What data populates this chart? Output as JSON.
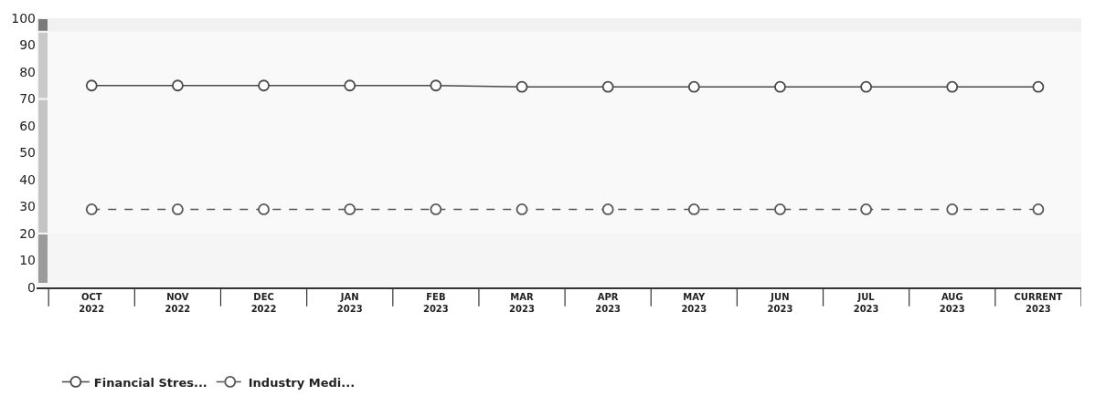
{
  "chart_data": {
    "type": "line",
    "categories": [
      "OCT\n2022",
      "NOV\n2022",
      "DEC\n2022",
      "JAN\n2023",
      "FEB\n2023",
      "MAR\n2023",
      "APR\n2023",
      "MAY\n2023",
      "JUN\n2023",
      "JUL\n2023",
      "AUG\n2023",
      "CURRENT\n2023"
    ],
    "series": [
      {
        "name": "Financial Stres...",
        "color": "#4a4a4a",
        "line_style": "solid",
        "values": [
          75,
          75,
          75,
          75,
          75,
          74.5,
          74.5,
          74.5,
          74.5,
          74.5,
          74.5,
          74.5
        ]
      },
      {
        "name": "Industry Medi...",
        "color": "#555555",
        "line_style": "dashed",
        "values": [
          29,
          29,
          29,
          29,
          29,
          29,
          29,
          29,
          29,
          29,
          29,
          29
        ]
      }
    ],
    "ylim": [
      0,
      100
    ],
    "yticks": [
      0,
      10,
      20,
      30,
      40,
      50,
      60,
      70,
      80,
      90,
      100
    ],
    "grid": false,
    "marker": "circle",
    "legend": "bottom left",
    "bands": [
      {
        "axis": "y",
        "from": 0,
        "to": 20,
        "color": "#9a9a9a"
      },
      {
        "axis": "y",
        "from": 20,
        "to": 70,
        "color": "#c4c4c4"
      },
      {
        "axis": "y",
        "from": 70,
        "to": 95,
        "color": "#c9c9c9"
      },
      {
        "axis": "y",
        "from": 95,
        "to": 100,
        "color": "#7a7a7a"
      }
    ]
  }
}
